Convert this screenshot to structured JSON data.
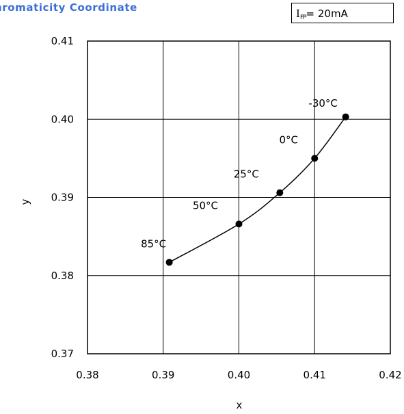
{
  "title": "hromaticity Coordinate",
  "condition": {
    "symbol": "I",
    "subscript": "FP",
    "value": "= 20mA"
  },
  "chart_data": {
    "type": "line",
    "title": "hromaticity Coordinate",
    "xlabel": "x",
    "ylabel": "y",
    "xlim": [
      0.38,
      0.42
    ],
    "ylim": [
      0.37,
      0.41
    ],
    "xticks": [
      "0.38",
      "0.39",
      "0.40",
      "0.41",
      "0.42"
    ],
    "yticks": [
      "0.37",
      "0.38",
      "0.39",
      "0.40",
      "0.41"
    ],
    "grid": true,
    "points": [
      {
        "label": "85°C",
        "x": 0.3908,
        "y": 0.3817
      },
      {
        "label": "50°C",
        "x": 0.4,
        "y": 0.3866
      },
      {
        "label": "25°C",
        "x": 0.4054,
        "y": 0.3906
      },
      {
        "label": "0°C",
        "x": 0.41,
        "y": 0.395
      },
      {
        "label": "-30°C",
        "x": 0.4141,
        "y": 0.4003
      }
    ]
  }
}
